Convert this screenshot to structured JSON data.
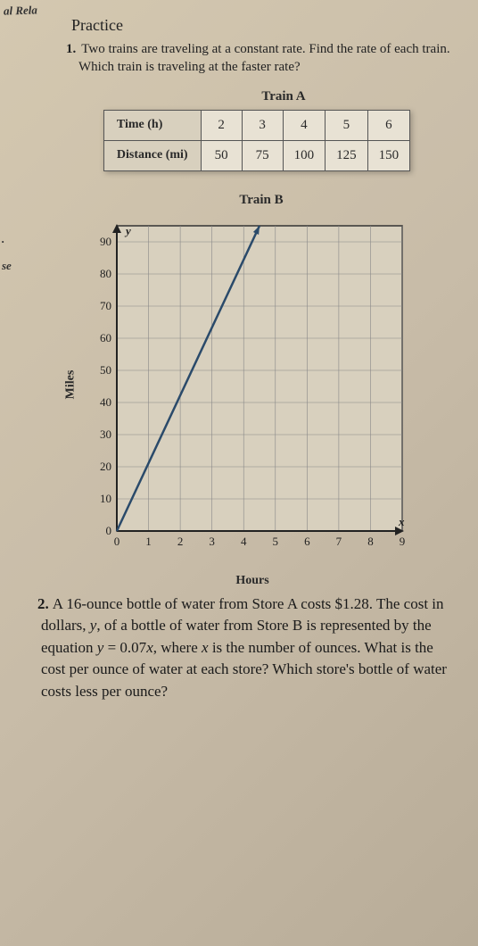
{
  "edges": {
    "topLeft": "al Rela",
    "leftDot": ".",
    "leftSe": "se"
  },
  "practice": "Practice",
  "q1": {
    "num": "1.",
    "text": "Two trains are traveling at a constant rate. Find the rate of each train. Which train is traveling at the faster rate?"
  },
  "tableA": {
    "title": "Train A",
    "rowHeaders": [
      "Time (h)",
      "Distance (mi)"
    ],
    "cols": [
      "2",
      "3",
      "4",
      "5",
      "6"
    ],
    "dist": [
      "50",
      "75",
      "100",
      "125",
      "150"
    ]
  },
  "chartB": {
    "title": "Train B",
    "ylabel": "Miles",
    "xlabel": "Hours",
    "yAxisLetter": "y",
    "xAxisLetter": "x",
    "xticks": [
      "0",
      "1",
      "2",
      "3",
      "4",
      "5",
      "6",
      "7",
      "8",
      "9"
    ],
    "yticks": [
      "0",
      "10",
      "20",
      "30",
      "40",
      "50",
      "60",
      "70",
      "80",
      "90"
    ],
    "line": {
      "x1": 0,
      "y1": 0,
      "x2": 4.5,
      "y2": 95
    },
    "grid_color": "#888",
    "line_color": "#2a4a6a",
    "bg_color": "#d8d0be"
  },
  "q2": {
    "num": "2.",
    "text": "A 16-ounce bottle of water from Store A costs $1.28. The cost in dollars, y, of a bottle of water from Store B is represented by the equation y = 0.07x, where x is the number of ounces. What is the cost per ounce of water at each store? Which store's bottle of water costs less per ounce?"
  }
}
